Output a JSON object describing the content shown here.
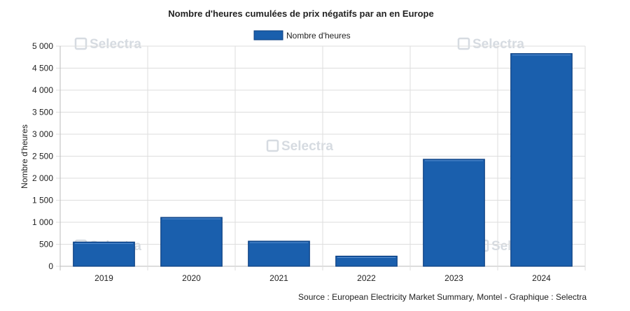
{
  "chart_data": {
    "type": "bar",
    "title": "Nombre d'heures cumulées de prix négatifs par an en Europe",
    "categories": [
      "2019",
      "2020",
      "2021",
      "2022",
      "2023",
      "2024"
    ],
    "series": [
      {
        "name": "Nombre d'heures",
        "values": [
          550,
          1110,
          570,
          230,
          2430,
          4830
        ]
      }
    ],
    "xlabel": "",
    "ylabel": "Nombre d'heures",
    "ylim": [
      0,
      5000
    ],
    "yticks": [
      "0",
      "500",
      "1 000",
      "1 500",
      "2 000",
      "2 500",
      "3 000",
      "3 500",
      "4 000",
      "4 500",
      "5 000"
    ],
    "grid": true,
    "legend_position": "top-center",
    "colors": {
      "bar_fill": "#1a5fad",
      "bar_stroke": "#0d3f80",
      "grid": "#dddddd",
      "axis": "#bbbbbb"
    }
  },
  "watermark": "Selectra",
  "source": "Source : European Electricity Market Summary, Montel - Graphique : Selectra"
}
